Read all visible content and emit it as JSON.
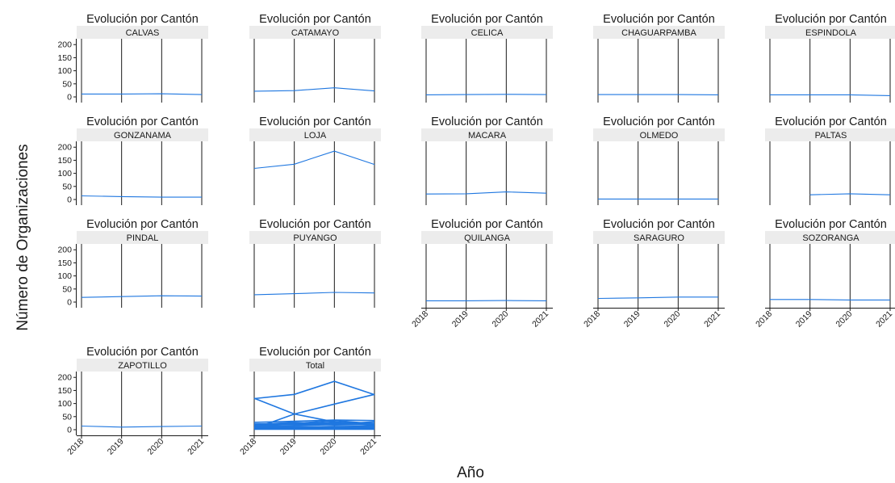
{
  "chart_data": {
    "type": "line",
    "facet_title": "Evolución por Cantón",
    "xlabel": "Año",
    "ylabel": "Número de Organizaciones",
    "x": [
      "2018",
      "2019",
      "2020",
      "2021"
    ],
    "ylim": [
      0,
      210
    ],
    "y_ticks": [
      "0",
      "50",
      "100",
      "150",
      "200"
    ],
    "line_color": "#1f77e0",
    "strip_color": "#ececec",
    "ncol": 5,
    "panels": [
      {
        "name": "CALVAS",
        "values": [
          11,
          11,
          12,
          9
        ]
      },
      {
        "name": "CATAMAYO",
        "values": [
          22,
          24,
          35,
          23
        ]
      },
      {
        "name": "CELICA",
        "values": [
          8,
          9,
          10,
          9
        ]
      },
      {
        "name": "CHAGUARPAMBA",
        "values": [
          9,
          9,
          9,
          8
        ]
      },
      {
        "name": "ESPINDOLA",
        "values": [
          8,
          8,
          8,
          5
        ]
      },
      {
        "name": "GONZANAMA",
        "values": [
          14,
          11,
          9,
          9
        ]
      },
      {
        "name": "LOJA",
        "values": [
          119,
          135,
          185,
          134
        ]
      },
      {
        "name": "MACARA",
        "values": [
          21,
          22,
          29,
          24
        ]
      },
      {
        "name": "OLMEDO",
        "values": [
          2,
          2,
          2,
          2
        ]
      },
      {
        "name": "PALTAS",
        "values": [
          null,
          18,
          22,
          18
        ]
      },
      {
        "name": "PINDAL",
        "values": [
          18,
          21,
          24,
          23
        ]
      },
      {
        "name": "PUYANGO",
        "values": [
          28,
          32,
          37,
          35
        ]
      },
      {
        "name": "QUILANGA",
        "values": [
          5,
          5,
          6,
          5
        ]
      },
      {
        "name": "SARAGURO",
        "values": [
          14,
          16,
          19,
          19
        ]
      },
      {
        "name": "SOZORANGA",
        "values": [
          10,
          10,
          8,
          8
        ]
      },
      {
        "name": "ZAPOTILLO",
        "values": [
          14,
          10,
          12,
          14
        ]
      },
      {
        "name": "Total",
        "multi": true,
        "values": [
          [
            11,
            11,
            12,
            9
          ],
          [
            22,
            24,
            35,
            23
          ],
          [
            8,
            9,
            10,
            9
          ],
          [
            9,
            9,
            9,
            8
          ],
          [
            8,
            8,
            8,
            5
          ],
          [
            14,
            11,
            9,
            9
          ],
          [
            119,
            135,
            185,
            134
          ],
          [
            21,
            22,
            29,
            24
          ],
          [
            2,
            2,
            2,
            2
          ],
          [
            null,
            18,
            22,
            18
          ],
          [
            18,
            21,
            24,
            23
          ],
          [
            28,
            32,
            37,
            35
          ],
          [
            5,
            5,
            6,
            5
          ],
          [
            14,
            16,
            19,
            19
          ],
          [
            10,
            10,
            8,
            8
          ],
          [
            14,
            10,
            12,
            14
          ],
          [
            120,
            60,
            30,
            15
          ],
          [
            5,
            60,
            98,
            135
          ],
          [
            20,
            28,
            22,
            30
          ],
          [
            12,
            25,
            18,
            20
          ]
        ]
      }
    ]
  }
}
